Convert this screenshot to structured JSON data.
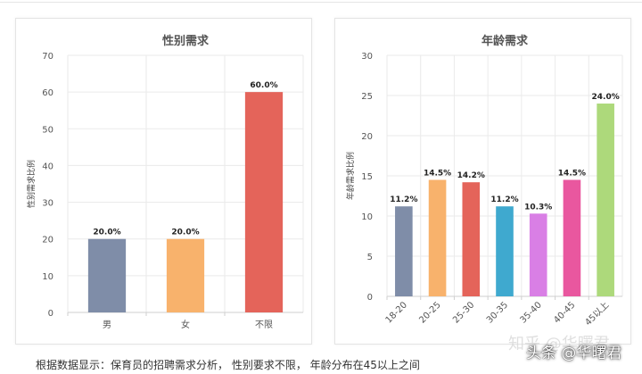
{
  "charts": [
    {
      "type": "bar",
      "title": "性别需求",
      "ylabel": "性别需求比例",
      "xlabel": "",
      "categories": [
        "男",
        "女",
        "不限"
      ],
      "values": [
        20.0,
        20.0,
        60.0
      ],
      "labels": [
        "20.0%",
        "20.0%",
        "60.0%"
      ],
      "colors": [
        "#7f8da8",
        "#f8b26c",
        "#e4645a"
      ],
      "ylim": [
        0,
        70
      ],
      "yticks": [
        "0",
        "10",
        "20",
        "30",
        "40",
        "50",
        "60",
        "70"
      ],
      "grid": true
    },
    {
      "type": "bar",
      "title": "年龄需求",
      "ylabel": "年龄需求比例",
      "xlabel": "",
      "categories": [
        "18-20",
        "20-25",
        "25-30",
        "30-35",
        "35-40",
        "40-45",
        "45以上"
      ],
      "values": [
        11.2,
        14.5,
        14.2,
        11.2,
        10.3,
        14.5,
        24.0
      ],
      "labels": [
        "11.2%",
        "14.5%",
        "14.2%",
        "11.2%",
        "10.3%",
        "14.5%",
        "24.0%"
      ],
      "colors": [
        "#7f8da8",
        "#f8b26c",
        "#e4645a",
        "#3fa9cf",
        "#d97fe5",
        "#e9579f",
        "#add97b"
      ],
      "ylim": [
        0,
        30
      ],
      "yticks": [
        "0",
        "5",
        "10",
        "15",
        "20",
        "25",
        "30"
      ],
      "grid": true
    }
  ],
  "caption": "根据数据显示：保育员的招聘需求分析，  性别要求不限，  年龄分布在45以上之间",
  "watermark": "头条 @华曙君",
  "watermark_faint": "知乎 @华曙君"
}
